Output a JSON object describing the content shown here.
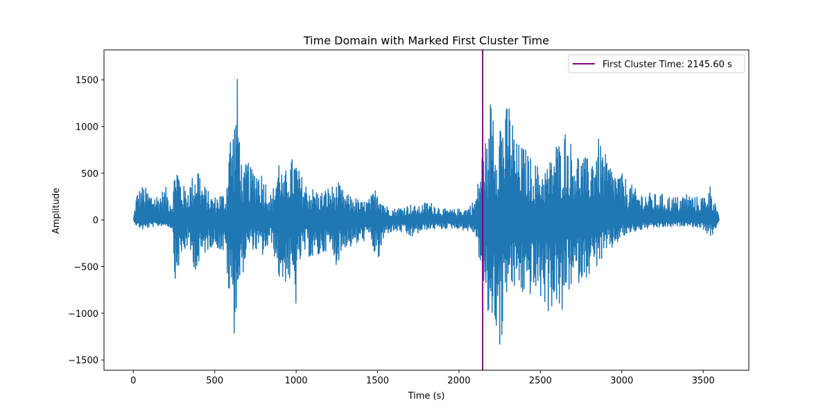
{
  "chart_data": {
    "type": "line",
    "title": "Time Domain with Marked First Cluster Time",
    "xlabel": "Time (s)",
    "ylabel": "Amplitude",
    "xlim": [
      -180,
      3780
    ],
    "ylim": [
      -1610,
      1820
    ],
    "x_ticks": [
      0,
      500,
      1000,
      1500,
      2000,
      2500,
      3000,
      3500
    ],
    "x_tick_labels": [
      "0",
      "500",
      "1000",
      "1500",
      "2000",
      "2500",
      "3000",
      "3500"
    ],
    "y_ticks": [
      -1500,
      -1000,
      -500,
      0,
      500,
      1000,
      1500
    ],
    "y_tick_labels": [
      "−1500",
      "−1000",
      "−500",
      "0",
      "500",
      "1000",
      "1500"
    ],
    "grid": false,
    "legend_position": "top-right",
    "series": [
      {
        "color": "#1f77b4",
        "envelope_note": "upper/lower amplitude envelope of the signal (approximate)",
        "x": [
          0,
          20,
          60,
          100,
          150,
          200,
          240,
          260,
          280,
          300,
          330,
          370,
          400,
          420,
          450,
          470,
          500,
          540,
          570,
          590,
          600,
          620,
          640,
          660,
          680,
          700,
          720,
          760,
          800,
          850,
          900,
          920,
          950,
          1000,
          1020,
          1060,
          1100,
          1150,
          1200,
          1250,
          1260,
          1300,
          1350,
          1400,
          1450,
          1500,
          1550,
          1600,
          1650,
          1700,
          1750,
          1800,
          1850,
          1900,
          1950,
          2000,
          2050,
          2100,
          2130,
          2150,
          2160,
          2180,
          2200,
          2230,
          2260,
          2280,
          2300,
          2330,
          2350,
          2400,
          2450,
          2500,
          2550,
          2600,
          2630,
          2650,
          2700,
          2750,
          2800,
          2850,
          2900,
          2950,
          3000,
          3050,
          3100,
          3150,
          3200,
          3250,
          3300,
          3350,
          3400,
          3450,
          3500,
          3550,
          3600
        ],
        "upper": [
          0,
          300,
          380,
          300,
          280,
          350,
          200,
          720,
          550,
          380,
          350,
          500,
          640,
          400,
          350,
          270,
          250,
          300,
          270,
          1080,
          900,
          1100,
          1570,
          700,
          500,
          700,
          560,
          600,
          500,
          250,
          770,
          400,
          650,
          680,
          520,
          400,
          350,
          300,
          360,
          380,
          400,
          280,
          260,
          200,
          230,
          380,
          160,
          120,
          150,
          170,
          140,
          200,
          180,
          120,
          110,
          120,
          130,
          230,
          550,
          900,
          910,
          720,
          1660,
          900,
          1290,
          1000,
          1380,
          1100,
          840,
          800,
          650,
          560,
          600,
          880,
          800,
          1000,
          800,
          700,
          650,
          900,
          700,
          550,
          500,
          400,
          300,
          300,
          280,
          280,
          260,
          250,
          300,
          250,
          260,
          400,
          0
        ],
        "lower": [
          0,
          -70,
          -110,
          -80,
          -70,
          -60,
          -100,
          -780,
          -500,
          -420,
          -300,
          -500,
          -600,
          -400,
          -350,
          -300,
          -280,
          -350,
          -400,
          -1010,
          -800,
          -1230,
          -850,
          -700,
          -520,
          -350,
          -300,
          -350,
          -400,
          -250,
          -700,
          -700,
          -650,
          -950,
          -500,
          -350,
          -450,
          -400,
          -300,
          -500,
          -450,
          -300,
          -300,
          -250,
          -180,
          -500,
          -150,
          -130,
          -140,
          -200,
          -150,
          -110,
          -100,
          -100,
          -90,
          -100,
          -120,
          -150,
          -500,
          -690,
          -1050,
          -1100,
          -1100,
          -1200,
          -1450,
          -1000,
          -700,
          -850,
          -700,
          -860,
          -800,
          -860,
          -1000,
          -900,
          -1220,
          -800,
          -750,
          -650,
          -600,
          -500,
          -400,
          -300,
          -200,
          -150,
          -120,
          -100,
          -90,
          -80,
          -80,
          -70,
          -60,
          -80,
          -100,
          -200,
          0
        ]
      }
    ],
    "marker": {
      "x": 2145.6,
      "color": "#800080",
      "legend_label": "First Cluster Time: 2145.60 s"
    }
  }
}
